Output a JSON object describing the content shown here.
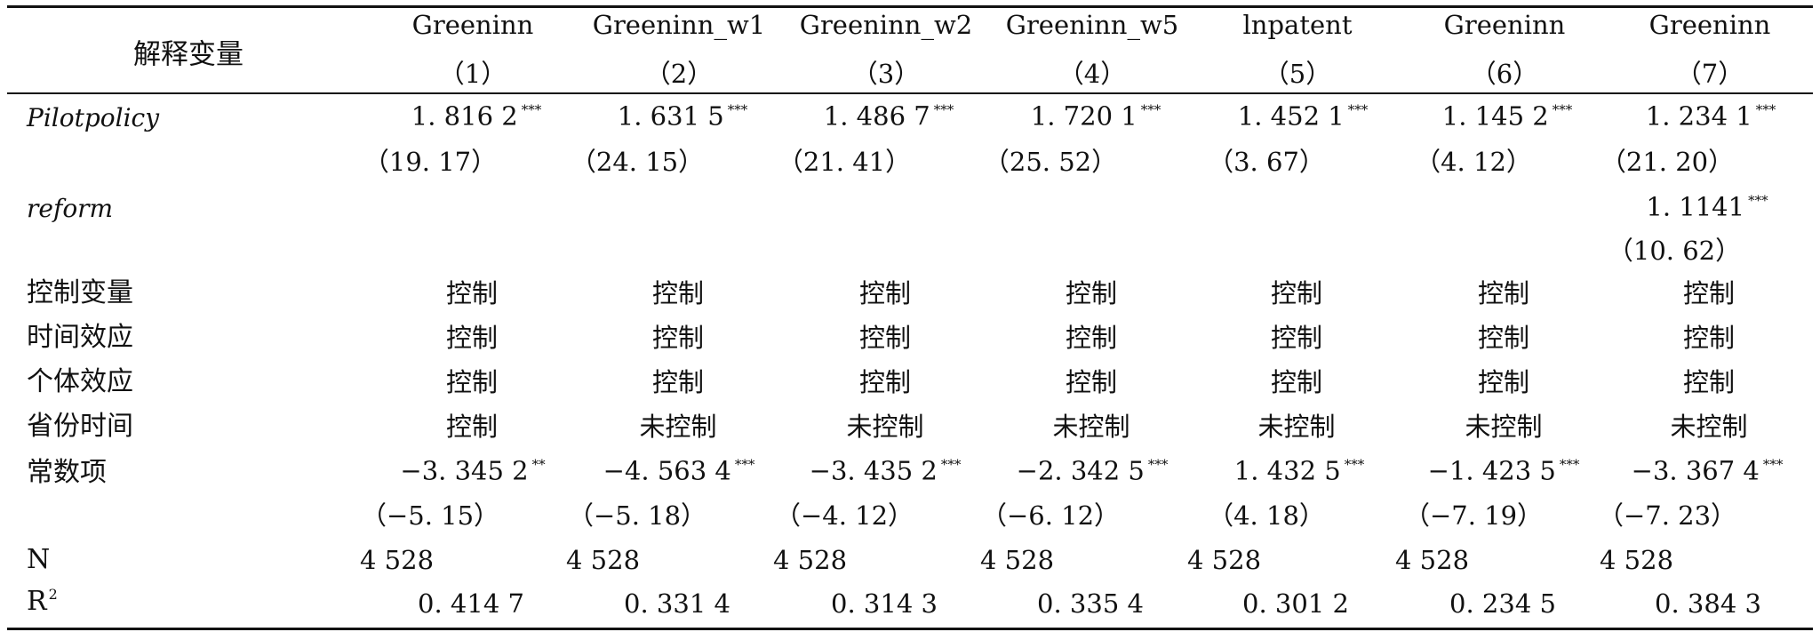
{
  "table": {
    "header_title": "解释变量",
    "columns": [
      {
        "name": "Greeninn",
        "num": "（1）"
      },
      {
        "name": "Greeninn_w1",
        "num": "（2）"
      },
      {
        "name": "Greeninn_w2",
        "num": "（3）"
      },
      {
        "name": "Greeninn_w5",
        "num": "（4）"
      },
      {
        "name": "lnpatent",
        "num": "（5）"
      },
      {
        "name": "Greeninn",
        "num": "（6）"
      },
      {
        "name": "Greeninn",
        "num": "（7）"
      }
    ],
    "rows": {
      "pilot": {
        "label": "Pilotpolicy",
        "coefs": [
          {
            "v": "1. 816 2",
            "s": "***"
          },
          {
            "v": "1. 631 5",
            "s": "***"
          },
          {
            "v": "1. 486 7",
            "s": "***"
          },
          {
            "v": "1. 720 1",
            "s": "***"
          },
          {
            "v": "1. 452 1",
            "s": "***"
          },
          {
            "v": "1. 145 2",
            "s": "***"
          },
          {
            "v": "1. 234 1",
            "s": "***"
          }
        ],
        "tstats": [
          "（19. 17）",
          "（24. 15）",
          "（21. 41）",
          "（25. 52）",
          "（3. 67）",
          "（4. 12）",
          "（21. 20）"
        ]
      },
      "reform": {
        "label": "reform",
        "coef": {
          "v": "1. 1141",
          "s": "***"
        },
        "tstat": "（10. 62）"
      },
      "controls": [
        {
          "label": "控制变量",
          "values": [
            "控制",
            "控制",
            "控制",
            "控制",
            "控制",
            "控制",
            "控制"
          ]
        },
        {
          "label": "时间效应",
          "values": [
            "控制",
            "控制",
            "控制",
            "控制",
            "控制",
            "控制",
            "控制"
          ]
        },
        {
          "label": "个体效应",
          "values": [
            "控制",
            "控制",
            "控制",
            "控制",
            "控制",
            "控制",
            "控制"
          ]
        },
        {
          "label": "省份时间",
          "values": [
            "控制",
            "未控制",
            "未控制",
            "未控制",
            "未控制",
            "未控制",
            "未控制"
          ]
        }
      ],
      "const": {
        "label": "常数项",
        "coefs": [
          {
            "v": "−3. 345 2",
            "s": "**"
          },
          {
            "v": "−4. 563 4",
            "s": "***"
          },
          {
            "v": "−3. 435 2",
            "s": "***"
          },
          {
            "v": "−2. 342 5",
            "s": "***"
          },
          {
            "v": "1. 432 5",
            "s": "***"
          },
          {
            "v": "−1. 423 5",
            "s": "***"
          },
          {
            "v": "−3. 367 4",
            "s": "***"
          }
        ],
        "tstats": [
          "（−5. 15）",
          "（−5. 18）",
          "（−4. 12）",
          "（−6. 12）",
          "（4. 18）",
          "（−7. 19）",
          "（−7. 23）"
        ]
      },
      "n": {
        "label": "N",
        "values": [
          "4 528",
          "4 528",
          "4 528",
          "4 528",
          "4 528",
          "4 528",
          "4 528"
        ]
      },
      "r2": {
        "label": "R",
        "sup": "2",
        "values": [
          "0. 414 7",
          "0. 331 4",
          "0. 314 3",
          "0. 335 4",
          "0. 301 2",
          "0. 234 5",
          "0. 384 3"
        ]
      }
    }
  }
}
